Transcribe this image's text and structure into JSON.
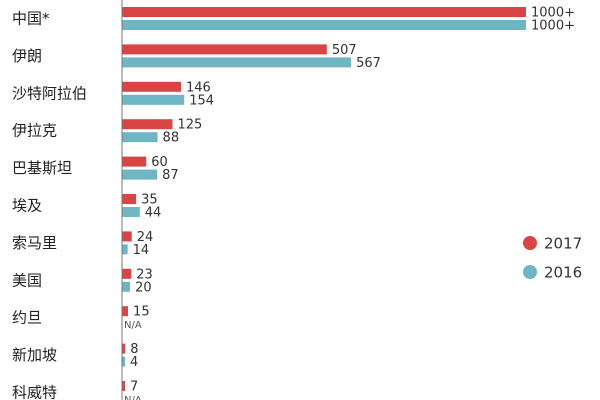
{
  "chart_data": {
    "type": "bar",
    "orientation": "horizontal",
    "title": "",
    "xlabel": "",
    "ylabel": "",
    "grid": false,
    "legend_position": "right",
    "xlim": [
      0,
      1000
    ],
    "categories": [
      "中国*",
      "伊朗",
      "沙特阿拉伯",
      "伊拉克",
      "巴基斯坦",
      "埃及",
      "索马里",
      "美国",
      "约旦",
      "新加坡",
      "科威特"
    ],
    "series": [
      {
        "name": "2017",
        "color": "#d94545",
        "values": [
          1000,
          507,
          146,
          125,
          60,
          35,
          24,
          23,
          15,
          8,
          7
        ],
        "labels": [
          "1000+",
          "507",
          "146",
          "125",
          "60",
          "35",
          "24",
          "23",
          "15",
          "8",
          "7"
        ]
      },
      {
        "name": "2016",
        "color": "#6fb5c3",
        "values": [
          1000,
          567,
          154,
          88,
          87,
          44,
          14,
          20,
          null,
          4,
          null
        ],
        "labels": [
          "1000+",
          "567",
          "154",
          "88",
          "87",
          "44",
          "14",
          "20",
          "N/A",
          "4",
          "N/A"
        ]
      }
    ]
  }
}
